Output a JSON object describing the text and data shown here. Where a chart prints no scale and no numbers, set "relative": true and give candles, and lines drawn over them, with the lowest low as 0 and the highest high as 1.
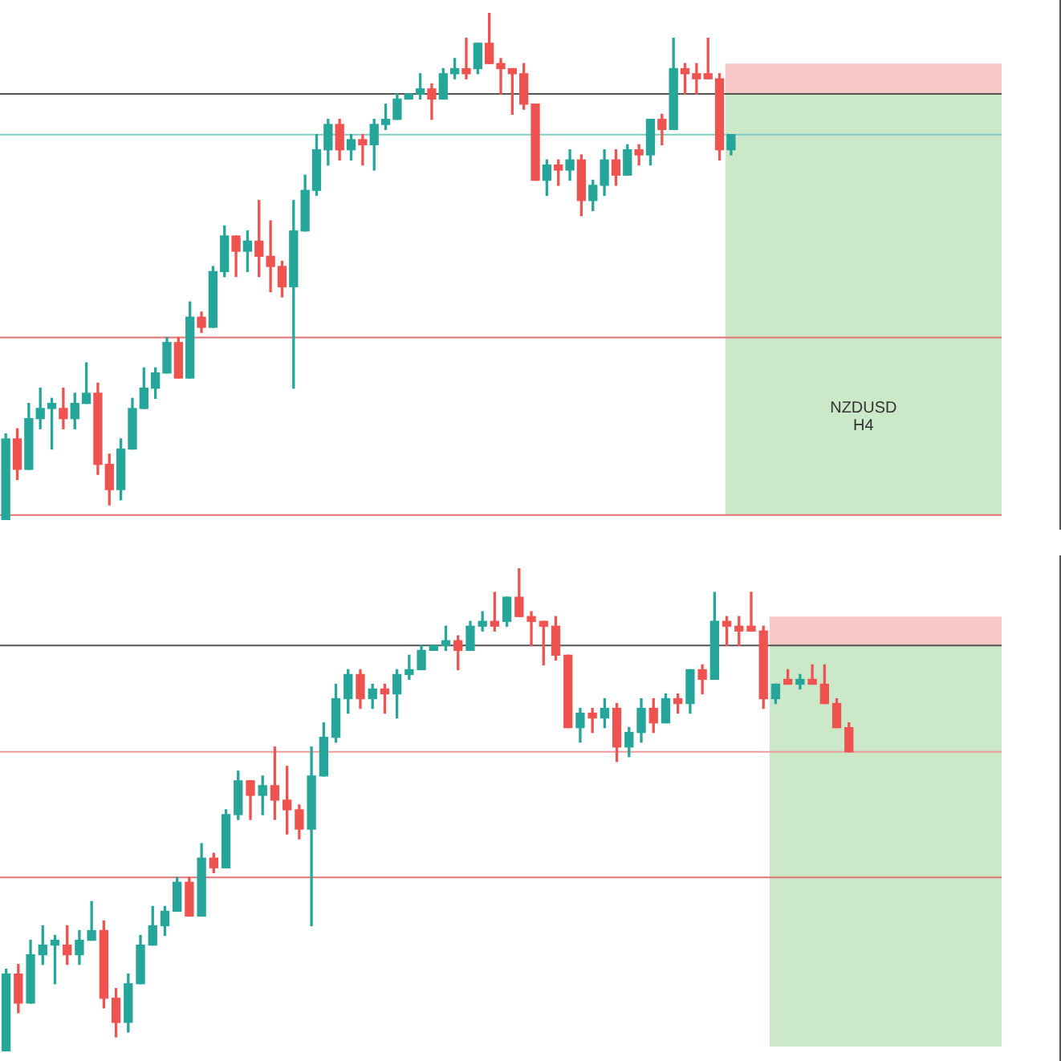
{
  "chart_data": [
    {
      "type": "candlestick",
      "relative": true,
      "categories": [
        null,
        null,
        null,
        null,
        null,
        null,
        null,
        null,
        null,
        null,
        null,
        null,
        null,
        null,
        null,
        null,
        null,
        null,
        null,
        null,
        null,
        null,
        null,
        null,
        null,
        null,
        null,
        null,
        null,
        null,
        null,
        null,
        null,
        null,
        null,
        null,
        null,
        null,
        null,
        null,
        null,
        null,
        null,
        null,
        null,
        null,
        null,
        null,
        null,
        null,
        null,
        null,
        null,
        null,
        null,
        null,
        null,
        null,
        null,
        null,
        null,
        null,
        null,
        null,
        null,
        null,
        null,
        null,
        null,
        null,
        null,
        null,
        null,
        null,
        null,
        null,
        null,
        null,
        null,
        null,
        null,
        null,
        null,
        null,
        null,
        null,
        null
      ],
      "ohlc": [
        [
          0,
          0.17,
          0,
          0.16
        ],
        [
          0.16,
          0.18,
          0.08,
          0.1
        ],
        [
          0.1,
          0.23,
          0.1,
          0.2
        ],
        [
          0.2,
          0.26,
          0.18,
          0.22
        ],
        [
          0.22,
          0.24,
          0.14,
          0.23
        ],
        [
          0.22,
          0.26,
          0.18,
          0.2
        ],
        [
          0.2,
          0.25,
          0.18,
          0.23
        ],
        [
          0.23,
          0.31,
          0.23,
          0.25
        ],
        [
          0.25,
          0.27,
          0.09,
          0.11
        ],
        [
          0.11,
          0.13,
          0.03,
          0.06
        ],
        [
          0.06,
          0.16,
          0.04,
          0.14
        ],
        [
          0.14,
          0.24,
          0.14,
          0.22
        ],
        [
          0.22,
          0.3,
          0.22,
          0.26
        ],
        [
          0.26,
          0.3,
          0.24,
          0.29
        ],
        [
          0.29,
          0.36,
          0.29,
          0.35
        ],
        [
          0.35,
          0.36,
          0.28,
          0.28
        ],
        [
          0.28,
          0.43,
          0.28,
          0.4
        ],
        [
          0.4,
          0.41,
          0.37,
          0.38
        ],
        [
          0.38,
          0.5,
          0.38,
          0.49
        ],
        [
          0.49,
          0.58,
          0.48,
          0.56
        ],
        [
          0.56,
          0.56,
          0.48,
          0.53
        ],
        [
          0.53,
          0.57,
          0.49,
          0.55
        ],
        [
          0.55,
          0.63,
          0.48,
          0.52
        ],
        [
          0.52,
          0.59,
          0.45,
          0.5
        ],
        [
          0.5,
          0.51,
          0.44,
          0.46
        ],
        [
          0.46,
          0.63,
          0.26,
          0.57
        ],
        [
          0.57,
          0.68,
          0.57,
          0.65
        ],
        [
          0.65,
          0.76,
          0.64,
          0.73
        ],
        [
          0.73,
          0.79,
          0.7,
          0.78
        ],
        [
          0.78,
          0.79,
          0.71,
          0.73
        ],
        [
          0.73,
          0.76,
          0.71,
          0.75
        ],
        [
          0.75,
          0.76,
          0.7,
          0.74
        ],
        [
          0.74,
          0.79,
          0.69,
          0.78
        ],
        [
          0.78,
          0.82,
          0.77,
          0.79
        ],
        [
          0.79,
          0.84,
          0.79,
          0.83
        ],
        [
          0.83,
          0.84,
          0.83,
          0.84
        ],
        [
          0.84,
          0.88,
          0.83,
          0.85
        ],
        [
          0.85,
          0.86,
          0.79,
          0.83
        ],
        [
          0.83,
          0.89,
          0.83,
          0.88
        ],
        [
          0.88,
          0.91,
          0.87,
          0.89
        ],
        [
          0.89,
          0.95,
          0.87,
          0.88
        ],
        [
          0.89,
          0.94,
          0.88,
          0.94
        ],
        [
          0.94,
          1,
          0.9,
          0.9
        ],
        [
          0.9,
          0.91,
          0.84,
          0.89
        ],
        [
          0.89,
          0.89,
          0.8,
          0.88
        ],
        [
          0.88,
          0.9,
          0.81,
          0.82
        ],
        [
          0.82,
          0.82,
          0.67,
          0.67
        ],
        [
          0.67,
          0.71,
          0.64,
          0.7
        ],
        [
          0.7,
          0.71,
          0.66,
          0.69
        ],
        [
          0.69,
          0.73,
          0.67,
          0.71
        ],
        [
          0.71,
          0.72,
          0.6,
          0.63
        ],
        [
          0.63,
          0.67,
          0.61,
          0.66
        ],
        [
          0.66,
          0.73,
          0.64,
          0.71
        ],
        [
          0.71,
          0.73,
          0.66,
          0.68
        ],
        [
          0.68,
          0.74,
          0.68,
          0.73
        ],
        [
          0.73,
          0.74,
          0.7,
          0.72
        ],
        [
          0.72,
          0.79,
          0.7,
          0.79
        ],
        [
          0.79,
          0.8,
          0.74,
          0.77
        ],
        [
          0.77,
          0.95,
          0.77,
          0.89
        ],
        [
          0.89,
          0.9,
          0.84,
          0.88
        ],
        [
          0.88,
          0.9,
          0.84,
          0.87
        ],
        [
          0.88,
          0.95,
          0.87,
          0.87
        ],
        [
          0.87,
          0.88,
          0.71,
          0.73
        ],
        [
          0.73,
          0.76,
          0.72,
          0.76
        ],
        null,
        null,
        null,
        null,
        null,
        null,
        null,
        null,
        null,
        null,
        null,
        null,
        null,
        null,
        null,
        null,
        null,
        null,
        null,
        null,
        null,
        null,
        null
      ],
      "ref_lines": [
        {
          "axis": "y",
          "value": 0.76,
          "color": "#80cbc4"
        },
        {
          "axis": "y",
          "value": 0.84,
          "color": "#555555"
        },
        {
          "axis": "y",
          "value": 0.36,
          "color": "#e57373"
        },
        {
          "axis": "y",
          "value": 0.01,
          "color": "#e57373"
        }
      ],
      "bands": [
        {
          "axis": "y",
          "from": 0.84,
          "to": 0.9,
          "color": "#f8c8c8"
        },
        {
          "axis": "y",
          "from": 0.01,
          "to": 0.84,
          "color": "#cbe8c9"
        }
      ],
      "annotations": [
        "NZDUSD",
        "H4"
      ]
    },
    {
      "type": "candlestick",
      "relative": true,
      "categories": [
        null,
        null,
        null,
        null,
        null,
        null,
        null,
        null,
        null,
        null,
        null,
        null,
        null,
        null,
        null,
        null,
        null,
        null,
        null,
        null,
        null,
        null,
        null,
        null,
        null,
        null,
        null,
        null,
        null,
        null,
        null,
        null,
        null,
        null,
        null,
        null,
        null,
        null,
        null,
        null,
        null,
        null,
        null,
        null,
        null,
        null,
        null,
        null,
        null,
        null,
        null,
        null,
        null,
        null,
        null,
        null,
        null,
        null,
        null,
        null,
        null,
        null,
        null,
        null,
        null,
        null,
        null,
        null,
        null,
        null,
        null,
        null,
        null,
        null,
        null,
        null,
        null,
        null,
        null,
        null,
        null,
        null
      ],
      "ohlc": [
        [
          0,
          0.17,
          0,
          0.16
        ],
        [
          0.16,
          0.18,
          0.08,
          0.1
        ],
        [
          0.1,
          0.23,
          0.1,
          0.2
        ],
        [
          0.2,
          0.26,
          0.18,
          0.22
        ],
        [
          0.22,
          0.24,
          0.14,
          0.23
        ],
        [
          0.22,
          0.26,
          0.18,
          0.2
        ],
        [
          0.2,
          0.25,
          0.18,
          0.23
        ],
        [
          0.23,
          0.31,
          0.23,
          0.25
        ],
        [
          0.25,
          0.27,
          0.09,
          0.11
        ],
        [
          0.11,
          0.13,
          0.03,
          0.06
        ],
        [
          0.06,
          0.16,
          0.04,
          0.14
        ],
        [
          0.14,
          0.24,
          0.14,
          0.22
        ],
        [
          0.22,
          0.3,
          0.22,
          0.26
        ],
        [
          0.26,
          0.3,
          0.24,
          0.29
        ],
        [
          0.29,
          0.36,
          0.29,
          0.35
        ],
        [
          0.35,
          0.36,
          0.28,
          0.28
        ],
        [
          0.28,
          0.43,
          0.28,
          0.4
        ],
        [
          0.4,
          0.41,
          0.37,
          0.38
        ],
        [
          0.38,
          0.5,
          0.38,
          0.49
        ],
        [
          0.49,
          0.58,
          0.48,
          0.56
        ],
        [
          0.56,
          0.56,
          0.48,
          0.53
        ],
        [
          0.53,
          0.57,
          0.49,
          0.55
        ],
        [
          0.55,
          0.63,
          0.48,
          0.52
        ],
        [
          0.52,
          0.59,
          0.45,
          0.5
        ],
        [
          0.5,
          0.51,
          0.44,
          0.46
        ],
        [
          0.46,
          0.63,
          0.26,
          0.57
        ],
        [
          0.57,
          0.68,
          0.57,
          0.65
        ],
        [
          0.65,
          0.76,
          0.64,
          0.73
        ],
        [
          0.73,
          0.79,
          0.7,
          0.78
        ],
        [
          0.78,
          0.79,
          0.71,
          0.73
        ],
        [
          0.73,
          0.76,
          0.71,
          0.75
        ],
        [
          0.75,
          0.76,
          0.7,
          0.74
        ],
        [
          0.74,
          0.79,
          0.69,
          0.78
        ],
        [
          0.78,
          0.82,
          0.77,
          0.79
        ],
        [
          0.79,
          0.84,
          0.79,
          0.83
        ],
        [
          0.83,
          0.84,
          0.83,
          0.84
        ],
        [
          0.84,
          0.88,
          0.83,
          0.85
        ],
        [
          0.85,
          0.86,
          0.79,
          0.83
        ],
        [
          0.83,
          0.89,
          0.83,
          0.88
        ],
        [
          0.88,
          0.91,
          0.87,
          0.89
        ],
        [
          0.89,
          0.95,
          0.87,
          0.88
        ],
        [
          0.89,
          0.94,
          0.88,
          0.94
        ],
        [
          0.94,
          1,
          0.9,
          0.9
        ],
        [
          0.9,
          0.91,
          0.84,
          0.89
        ],
        [
          0.89,
          0.89,
          0.8,
          0.88
        ],
        [
          0.88,
          0.9,
          0.81,
          0.82
        ],
        [
          0.82,
          0.82,
          0.67,
          0.67
        ],
        [
          0.67,
          0.71,
          0.64,
          0.7
        ],
        [
          0.7,
          0.71,
          0.66,
          0.69
        ],
        [
          0.69,
          0.73,
          0.67,
          0.71
        ],
        [
          0.71,
          0.72,
          0.6,
          0.63
        ],
        [
          0.63,
          0.67,
          0.61,
          0.66
        ],
        [
          0.66,
          0.73,
          0.64,
          0.71
        ],
        [
          0.71,
          0.73,
          0.66,
          0.68
        ],
        [
          0.68,
          0.74,
          0.68,
          0.73
        ],
        [
          0.73,
          0.74,
          0.7,
          0.72
        ],
        [
          0.72,
          0.79,
          0.7,
          0.79
        ],
        [
          0.79,
          0.8,
          0.74,
          0.77
        ],
        [
          0.77,
          0.95,
          0.77,
          0.89
        ],
        [
          0.89,
          0.9,
          0.84,
          0.88
        ],
        [
          0.88,
          0.9,
          0.84,
          0.87
        ],
        [
          0.88,
          0.95,
          0.87,
          0.87
        ],
        [
          0.87,
          0.88,
          0.71,
          0.73
        ],
        [
          0.73,
          0.76,
          0.72,
          0.76
        ],
        [
          0.77,
          0.79,
          0.76,
          0.76
        ],
        [
          0.76,
          0.78,
          0.75,
          0.77
        ],
        [
          0.77,
          0.8,
          0.76,
          0.76
        ],
        [
          0.76,
          0.8,
          0.72,
          0.72
        ],
        [
          0.72,
          0.73,
          0.67,
          0.67
        ],
        [
          0.67,
          0.68,
          0.62,
          0.62
        ],
        null,
        null,
        null,
        null,
        null,
        null,
        null,
        null,
        null,
        null,
        null,
        null
      ],
      "ref_lines": [
        {
          "axis": "y",
          "value": 0.84,
          "color": "#555555"
        },
        {
          "axis": "y",
          "value": 0.62,
          "color": "#ef9a9a"
        },
        {
          "axis": "y",
          "value": 0.36,
          "color": "#e57373"
        }
      ],
      "bands": [
        {
          "axis": "y",
          "from": 0.84,
          "to": 0.9,
          "color": "#f8c8c8"
        },
        {
          "axis": "y",
          "from": 0.01,
          "to": 0.84,
          "color": "#cbe8c9"
        }
      ]
    }
  ]
}
